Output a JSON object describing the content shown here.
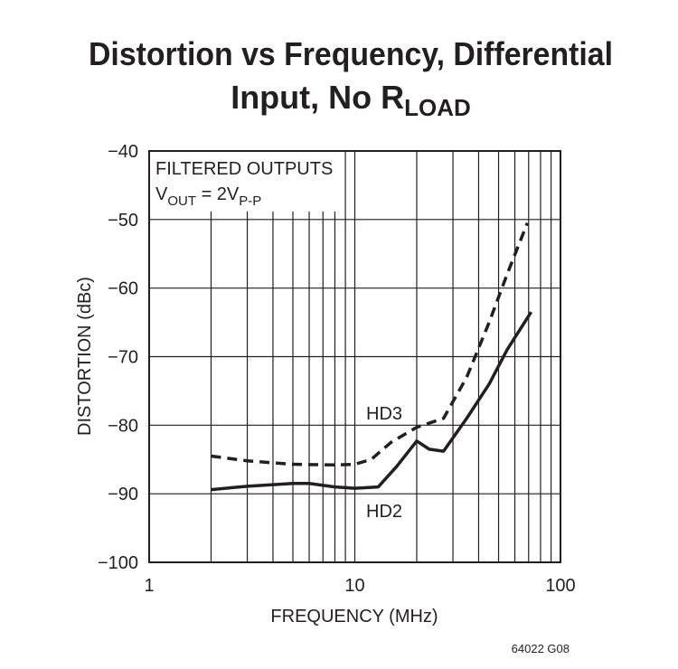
{
  "chart_data": {
    "type": "line",
    "title_line1": "Distortion vs Frequency, Differential",
    "title_line2": "Input, No R",
    "title_subscript": "LOAD",
    "annotation": {
      "line1": "FILTERED OUTPUTS",
      "v": "V",
      "v_sub": "OUT",
      "eq": " = 2V",
      "eq_sub": "P-P"
    },
    "xlabel": "FREQUENCY (MHz)",
    "ylabel": "DISTORTION (dBc)",
    "footnote": "64022 G08",
    "xscale": "log",
    "xlim": [
      1,
      100
    ],
    "xticks": [
      1,
      10,
      100
    ],
    "minor_xgrid": [
      2,
      3,
      4,
      5,
      6,
      7,
      8,
      9,
      20,
      30,
      40,
      50,
      60,
      70,
      80,
      90
    ],
    "ylim": [
      -100,
      -40
    ],
    "yticks": [
      {
        "value": -40,
        "label": "−40"
      },
      {
        "value": -50,
        "label": "−50"
      },
      {
        "value": -60,
        "label": "−60"
      },
      {
        "value": -70,
        "label": "−70"
      },
      {
        "value": -80,
        "label": "−80"
      },
      {
        "value": -90,
        "label": "−90"
      },
      {
        "value": -100,
        "label": "−100"
      }
    ],
    "grid": true,
    "series": [
      {
        "name": "HD3",
        "color": "#231f20",
        "dashed": true,
        "x": [
          2,
          3,
          5,
          8,
          10,
          12,
          15,
          20,
          27,
          35,
          45,
          55,
          69
        ],
        "values": [
          -84.5,
          -85.2,
          -85.7,
          -85.8,
          -85.7,
          -85,
          -82.5,
          -80.3,
          -79,
          -73,
          -65,
          -58,
          -50.5
        ]
      },
      {
        "name": "HD2",
        "color": "#231f20",
        "dashed": false,
        "x": [
          2,
          3,
          5,
          6,
          8,
          10,
          13,
          16,
          20,
          23,
          27,
          35,
          45,
          55,
          72
        ],
        "values": [
          -89.4,
          -88.9,
          -88.5,
          -88.5,
          -89,
          -89.2,
          -89,
          -86,
          -82.3,
          -83.5,
          -83.8,
          -79,
          -74,
          -69,
          -63.5
        ]
      }
    ]
  }
}
